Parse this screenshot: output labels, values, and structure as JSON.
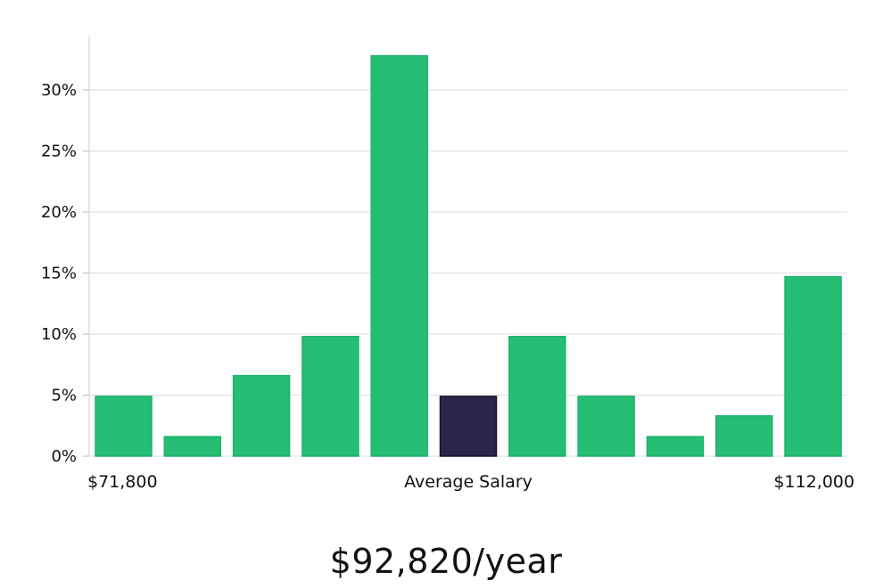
{
  "chart_data": {
    "type": "bar",
    "categories": [
      "1",
      "2",
      "3",
      "4",
      "5",
      "6",
      "7",
      "8",
      "9",
      "10",
      "11"
    ],
    "values": [
      4.9,
      1.6,
      6.6,
      9.8,
      32.8,
      4.9,
      9.8,
      4.9,
      1.6,
      3.3,
      14.7
    ],
    "highlight_index": 5,
    "ylim": [
      0,
      34
    ],
    "yticks": [
      0,
      5,
      10,
      15,
      20,
      25,
      30
    ],
    "ytick_labels": [
      "0%",
      "5%",
      "10%",
      "15%",
      "20%",
      "25%",
      "30%"
    ],
    "xlabel_left": "$71,800",
    "xlabel_center": "Average Salary",
    "xlabel_right": "$112,000",
    "grid": true,
    "colors": {
      "bar": "#26bd75",
      "highlight": "#2a2549",
      "grid": "#dddddd"
    }
  },
  "summary": {
    "salary_text": "$92,820/year"
  }
}
